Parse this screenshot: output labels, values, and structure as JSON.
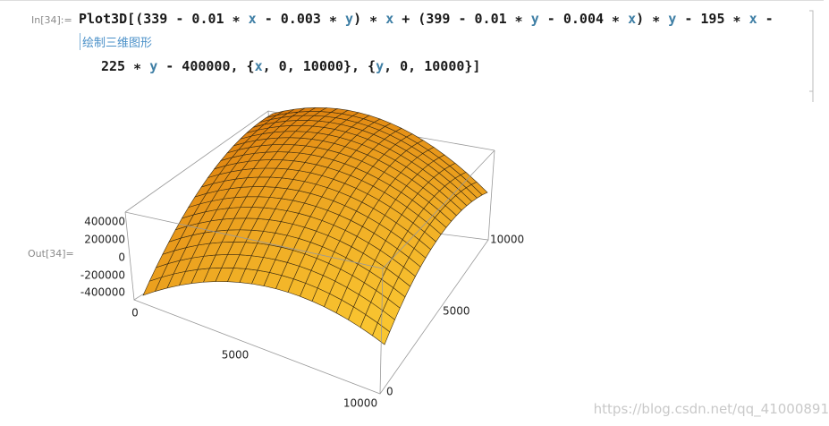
{
  "input_label": "In[34]:=",
  "output_label": "Out[34]=",
  "input_line_1": [
    {
      "text": "Plot3D[(339 - 0.01 ∗ "
    },
    {
      "text": "x",
      "var": true
    },
    {
      "text": " - 0.003 ∗ "
    },
    {
      "text": "y",
      "var": true
    },
    {
      "text": ") ∗ "
    },
    {
      "text": "x",
      "var": true
    },
    {
      "text": " + (399 - 0.01 ∗ "
    },
    {
      "text": "y",
      "var": true
    },
    {
      "text": " - 0.004 ∗ "
    },
    {
      "text": "x",
      "var": true
    },
    {
      "text": ") ∗ "
    },
    {
      "text": "y",
      "var": true
    },
    {
      "text": " - 195 ∗ "
    },
    {
      "text": "x",
      "var": true
    },
    {
      "text": " -"
    }
  ],
  "input_line_2": [
    {
      "text": "225 ∗ "
    },
    {
      "text": "y",
      "var": true
    },
    {
      "text": " - 400000, {"
    },
    {
      "text": "x",
      "var": true
    },
    {
      "text": ", 0, 10000}, {"
    },
    {
      "text": "y",
      "var": true
    },
    {
      "text": ", 0, 10000}]"
    }
  ],
  "annotation": "绘制三维图形",
  "plot": {
    "z_ticks": [
      "400000",
      "200000",
      "0",
      "-200000",
      "-400000"
    ],
    "x_ticks": [
      "0",
      "5000",
      "10000"
    ],
    "y_ticks": [
      "0",
      "5000",
      "10000"
    ]
  },
  "watermark": "https://blog.csdn.net/qq_41000891"
}
